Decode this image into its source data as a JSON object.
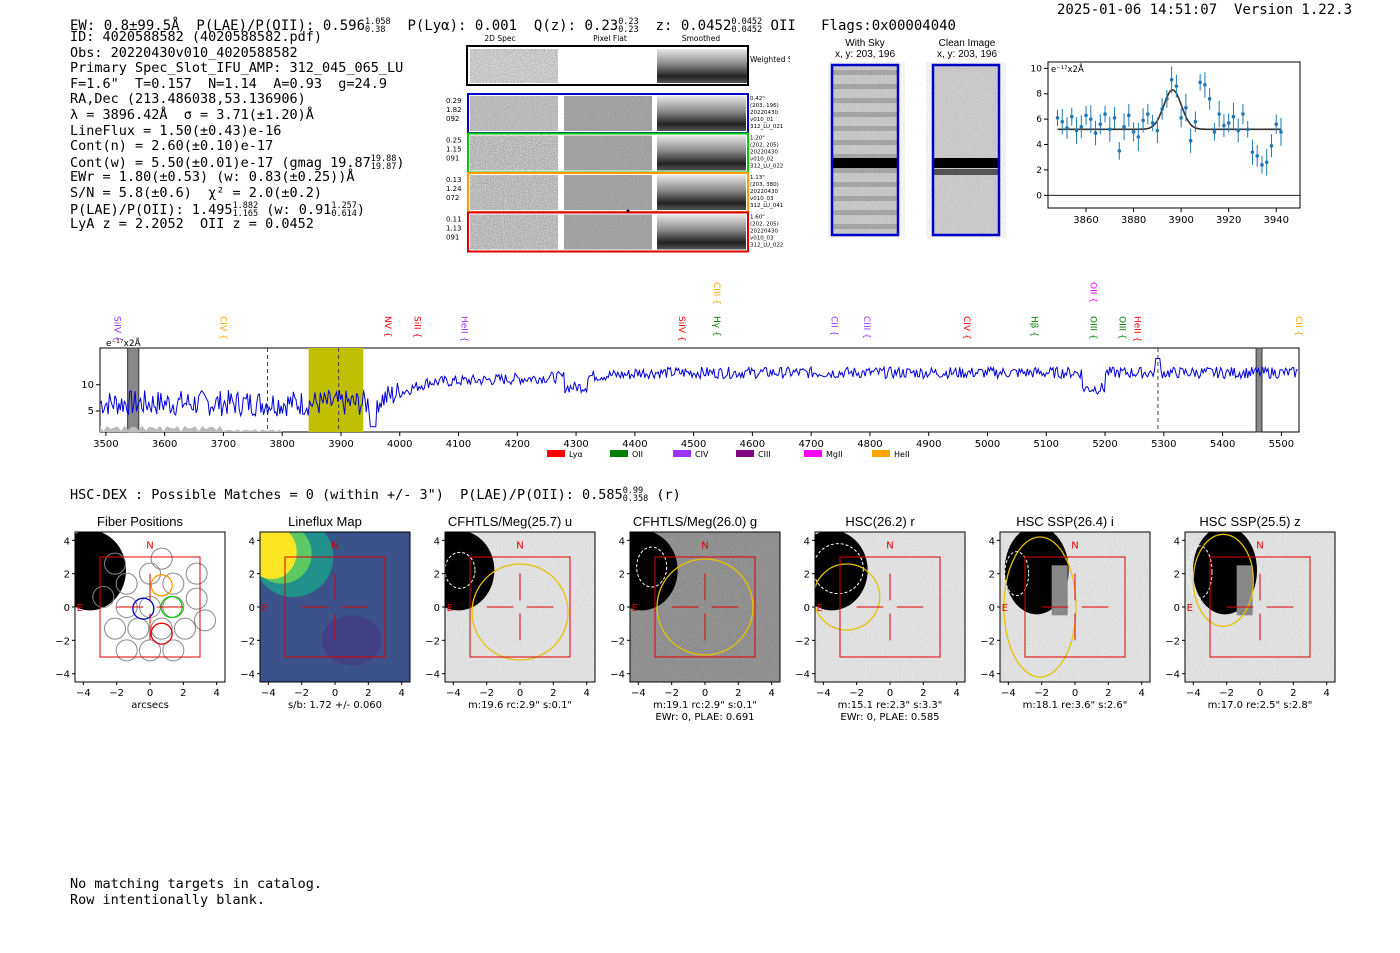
{
  "header": {
    "left": "EW: 0.8±99.5Å  P(LAE)/P(OII): 0.596",
    "plae_sup": "1.058",
    "plae_sub": "0.38",
    "lya": "P(Lyα): 0.001  Q(z): 0.23",
    "qz_sup": "0.23",
    "qz_sub": "0.23",
    "z": "z: 0.0452",
    "z_sup": "0.0452",
    "z_sub": "0.0452",
    "z_tail": "OII   Flags:0x00004040",
    "right": "2025-01-06 14:51:07  Version 1.22.3"
  },
  "info": {
    "l1": "ID: 4020588582 (4020588582.pdf)",
    "l2": "Obs: 20220430v010_4020588582",
    "l3": "Primary Spec_Slot_IFU_AMP: 312_045_065_LU",
    "l4": "F=1.6\"  T=0.157  N=1.14  A=0.93  g=24.9",
    "l5": "RA,Dec (213.486038,53.136906)",
    "l6": "λ = 3896.42Å  σ = 3.71(±1.20)Å",
    "l7": "LineFlux = 1.50(±0.43)e-16",
    "l8": "Cont(n) = 2.60(±0.10)e-17",
    "l9": "Cont(w) = 5.50(±0.01)e-17 (gmag 19.87",
    "l9_sup": "19.88",
    "l9_sub": "19.87",
    "l9_tail": ")",
    "l10": "EWr = 1.80(±0.53) (w: 0.83(±0.25))Å",
    "l11": "S/N = 5.8(±0.6)  χ² = 2.0(±0.2)",
    "l12": "P(LAE)/P(OII): 1.495",
    "l12_sup": "1.882",
    "l12_sub": "1.165",
    "l12_mid": "(w: 0.91",
    "l12_sup2": "1.257",
    "l12_sub2": "0.614",
    "l12_tail": ")",
    "l13": "LyA z = 2.2052  OII z = 0.0452"
  },
  "fibers": {
    "columns": [
      "2D Spec",
      "Pixel Flat",
      "Smoothed"
    ],
    "sum_label": "Weighted Sum",
    "rows": [
      {
        "left": "0.29\n1.82\n092",
        "right": "0.42\"\n(203, 196)\n20220430\nv010_01\n312_LU_021",
        "color": "#0000cc"
      },
      {
        "left": "0.25\n1.15\n091",
        "right": "1.20\"\n(202, 205)\n20220430\nv010_02\n312_LU_022",
        "color": "#00cc00"
      },
      {
        "left": "0.13\n1.24\n072",
        "right": "1.13\"\n(203, 380)\n20220430\nv010_03\n312_LU_041",
        "color": "#ff9900"
      },
      {
        "left": "0.11\n1.13\n091",
        "right": "1.60\"\n(202, 205)\n20220430\nv010_03\n312_LU_022",
        "color": "#dd0000"
      }
    ]
  },
  "sky": {
    "with_sky": "With Sky",
    "clean": "Clean Image",
    "coords": "x, y: 203, 196"
  },
  "zoom_chart": {
    "ylabel": "e⁻¹⁷x2Å"
  },
  "full_chart": {
    "ylabel": "e⁻¹⁷x2Å"
  },
  "legend": [
    {
      "name": "Lyα",
      "color": "#ff0000"
    },
    {
      "name": "OII",
      "color": "#008000"
    },
    {
      "name": "CIV",
      "color": "#9933ff"
    },
    {
      "name": "CIII",
      "color": "#800080"
    },
    {
      "name": "MgII",
      "color": "#ff00ff"
    },
    {
      "name": "HeII",
      "color": "#ffa500"
    }
  ],
  "chart_data": [
    {
      "type": "scatter",
      "xlim": [
        3844,
        3950
      ],
      "ylim": [
        -1,
        10.5
      ],
      "x": [
        3848,
        3850,
        3852,
        3854,
        3856,
        3858,
        3860,
        3862,
        3864,
        3866,
        3868,
        3870,
        3872,
        3874,
        3876,
        3878,
        3880,
        3882,
        3884,
        3886,
        3888,
        3890,
        3892,
        3894,
        3896,
        3898,
        3900,
        3902,
        3904,
        3906,
        3908,
        3910,
        3912,
        3914,
        3916,
        3918,
        3920,
        3922,
        3924,
        3926,
        3928,
        3930,
        3932,
        3934,
        3936,
        3938,
        3940,
        3942
      ],
      "y": [
        6.1,
        5.8,
        5.3,
        6.2,
        5.1,
        5.4,
        6.3,
        6.0,
        4.9,
        5.6,
        6.4,
        5.2,
        6.1,
        3.5,
        5.4,
        6.3,
        5.0,
        4.6,
        5.9,
        6.4,
        5.7,
        5.1,
        6.8,
        7.6,
        9.1,
        8.6,
        6.1,
        6.9,
        4.3,
        5.8,
        8.9,
        8.7,
        7.6,
        5.0,
        6.4,
        5.5,
        5.7,
        6.2,
        5.1,
        6.4,
        5.2,
        3.4,
        3.1,
        2.4,
        2.6,
        3.9,
        5.6,
        5.0
      ],
      "fit": {
        "continuum": 5.2,
        "center": 3896.42,
        "sigma": 3.71,
        "peak": 8.3
      },
      "xticks": [
        3860,
        3880,
        3900,
        3920,
        3940
      ],
      "yticks": [
        0,
        2,
        4,
        6,
        8,
        10
      ]
    },
    {
      "type": "line",
      "xlim": [
        3490,
        5530
      ],
      "ylim": [
        1,
        17
      ],
      "xticks": [
        3500,
        3600,
        3700,
        3800,
        3900,
        4000,
        4100,
        4200,
        4300,
        4400,
        4500,
        4600,
        4700,
        4800,
        4900,
        5000,
        5100,
        5200,
        5300,
        5400,
        5500
      ],
      "yticks": [
        5,
        10
      ],
      "lines": [
        {
          "name": "SiIV",
          "x": 3520,
          "color": "#9933ff"
        },
        {
          "name": "CIV",
          "x": 3700,
          "color": "#ffa500"
        },
        {
          "name": "NV",
          "x": 3980,
          "color": "#ff0000"
        },
        {
          "name": "SiII",
          "x": 4030,
          "color": "#ff0000"
        },
        {
          "name": "HeII",
          "x": 4110,
          "color": "#9933ff"
        },
        {
          "name": "SiIV",
          "x": 4480,
          "color": "#ff0000"
        },
        {
          "name": "Hγ",
          "x": 4540,
          "color": "#008000"
        },
        {
          "name": "CII",
          "x": 4740,
          "color": "#9933ff"
        },
        {
          "name": "CIII",
          "x": 4795,
          "color": "#9933ff"
        },
        {
          "name": "CIV",
          "x": 4965,
          "color": "#ff0000"
        },
        {
          "name": "Hβ",
          "x": 5080,
          "color": "#008000"
        },
        {
          "name": "OIII",
          "x": 5180,
          "color": "#008000"
        },
        {
          "name": "OIII",
          "x": 5230,
          "color": "#008000"
        },
        {
          "name": "HeII",
          "x": 5255,
          "color": "#ff0000"
        },
        {
          "name": "CII",
          "x": 5530,
          "color": "#ffa500"
        }
      ],
      "upper_lines": [
        {
          "name": "CIII",
          "x": 4540,
          "color": "#ffa500"
        },
        {
          "name": "OII",
          "x": 5180,
          "color": "#ff00ff"
        }
      ]
    }
  ],
  "hsc": {
    "title": "HSC-DEX : Possible Matches = 0 (within +/- 3\")  P(LAE)/P(OII): 0.585",
    "sup": "0.99",
    "sub": "0.358",
    "tail": "(r)"
  },
  "cutouts": [
    {
      "title": "Fiber Positions",
      "cap1": "arcsecs",
      "cap2": ""
    },
    {
      "title": "Lineflux Map",
      "cap1": "s/b: 1.72 +/- 0.060",
      "cap2": ""
    },
    {
      "title": "CFHTLS/Meg(25.7) u",
      "cap1": "m:19.6 rc:2.9\"  s:0.1\"",
      "cap2": ""
    },
    {
      "title": "CFHTLS/Meg(26.0) g",
      "cap1": "m:19.1 rc:2.9\"  s:0.1\"",
      "cap2": "EWr: 0, PLAE: 0.691"
    },
    {
      "title": "HSC(26.2) r",
      "cap1": "m:15.1  re:2.3\"  s:3.3\"",
      "cap2": "EWr: 0, PLAE: 0.585"
    },
    {
      "title": "HSC SSP(26.4) i",
      "cap1": "m:18.1  re:3.6\"  s:2.6\"",
      "cap2": ""
    },
    {
      "title": "HSC SSP(25.5) z",
      "cap1": "m:17.0  re:2.5\"  s:2.8\"",
      "cap2": ""
    }
  ],
  "cut_ticks": [
    "−4",
    "−2",
    "0",
    "2",
    "4"
  ],
  "cut_yticks": [
    "4",
    "2",
    "0",
    "−2",
    "−4"
  ],
  "north": "N",
  "east": "E",
  "footer": {
    "l1": "No matching targets in catalog.",
    "l2": "Row intentionally blank."
  }
}
